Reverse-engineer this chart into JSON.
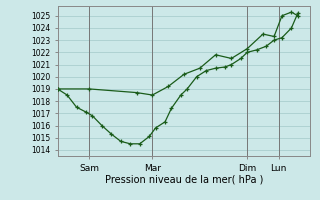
{
  "xlabel": "Pression niveau de la mer( hPa )",
  "ylim": [
    1013.5,
    1025.8
  ],
  "yticks": [
    1014,
    1015,
    1016,
    1017,
    1018,
    1019,
    1020,
    1021,
    1022,
    1023,
    1024,
    1025
  ],
  "bg_color": "#cce8e8",
  "grid_color": "#aacece",
  "line_color": "#1a5c1a",
  "vline_color": "#777777",
  "xlim": [
    0.0,
    8.0
  ],
  "xtick_positions": [
    1,
    3,
    6,
    7
  ],
  "xtick_labels": [
    "Sam",
    "Mar",
    "Dim",
    "Lun"
  ],
  "series1_x": [
    0.0,
    0.3,
    0.6,
    0.9,
    1.1,
    1.4,
    1.7,
    2.0,
    2.3,
    2.6,
    2.9,
    3.1,
    3.4,
    3.6,
    3.9,
    4.1,
    4.4,
    4.7,
    5.0,
    5.3,
    5.5,
    5.8,
    6.0,
    6.3,
    6.6,
    6.85,
    7.1,
    7.4,
    7.6
  ],
  "series1_y": [
    1019.0,
    1018.5,
    1017.5,
    1017.1,
    1016.8,
    1016.0,
    1015.3,
    1014.7,
    1014.5,
    1014.5,
    1015.1,
    1015.8,
    1016.3,
    1017.4,
    1018.5,
    1019.0,
    1020.0,
    1020.5,
    1020.7,
    1020.8,
    1021.0,
    1021.5,
    1022.0,
    1022.2,
    1022.5,
    1023.0,
    1023.2,
    1024.0,
    1025.2
  ],
  "series2_x": [
    0.0,
    1.0,
    2.5,
    3.0,
    3.5,
    4.0,
    4.5,
    5.0,
    5.5,
    6.0,
    6.5,
    6.85,
    7.1,
    7.4,
    7.6
  ],
  "series2_y": [
    1019.0,
    1019.0,
    1018.7,
    1018.5,
    1019.2,
    1020.2,
    1020.7,
    1021.8,
    1021.5,
    1022.3,
    1023.5,
    1023.3,
    1025.0,
    1025.3,
    1025.0
  ]
}
